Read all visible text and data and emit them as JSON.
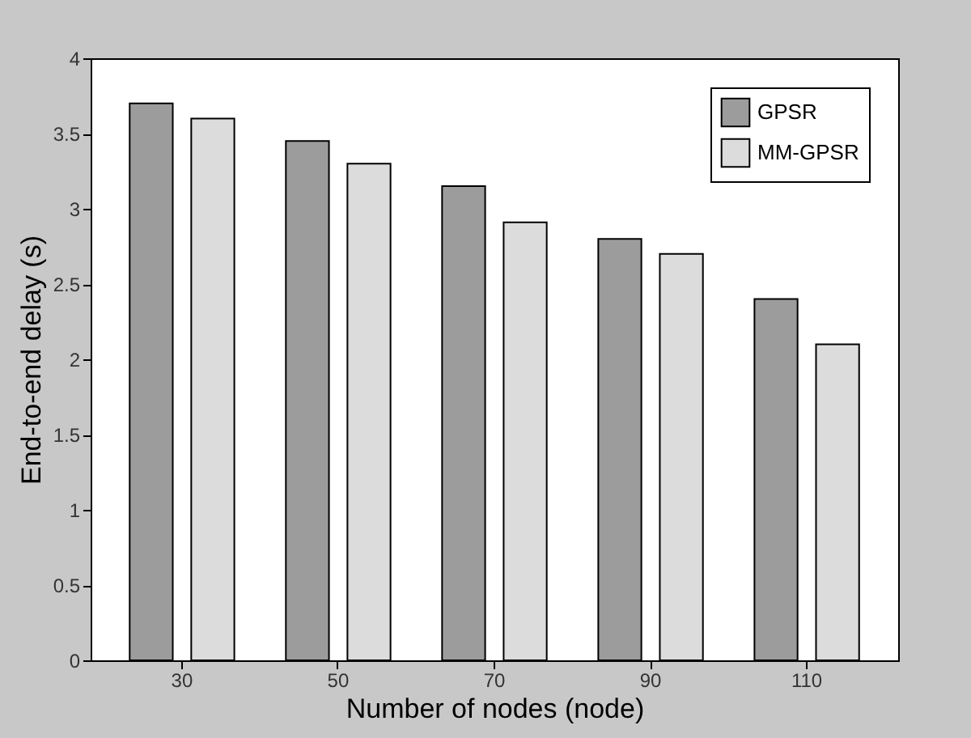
{
  "chart_data": {
    "type": "bar",
    "xlabel": "Number of nodes (node)",
    "ylabel": "End-to-end delay (s)",
    "categories": [
      "30",
      "50",
      "70",
      "90",
      "110"
    ],
    "series": [
      {
        "name": "GPSR",
        "color": "#9c9c9c",
        "values": [
          3.7,
          3.45,
          3.15,
          2.8,
          2.4
        ]
      },
      {
        "name": "MM-GPSR",
        "color": "#dcdcdc",
        "values": [
          3.6,
          3.3,
          2.91,
          2.7,
          2.1
        ]
      }
    ],
    "ylim": [
      0,
      4
    ],
    "yticks": [
      0,
      0.5,
      1,
      1.5,
      2,
      2.5,
      3,
      3.5,
      4
    ],
    "grid": false,
    "legend": "top right"
  }
}
